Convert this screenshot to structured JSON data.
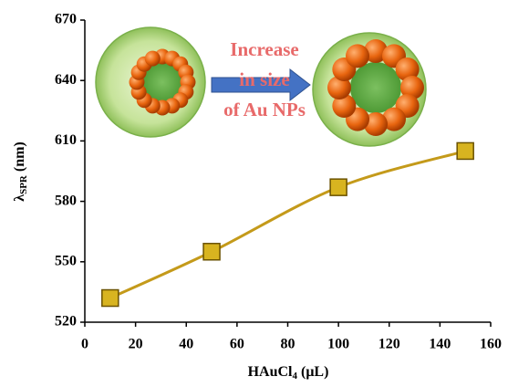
{
  "chart_data": {
    "type": "line",
    "x": [
      10,
      50,
      100,
      150
    ],
    "series": [
      {
        "name": null,
        "color": "#c49a1a",
        "marker_color": "#d8b420",
        "values": [
          532,
          555,
          587,
          605
        ]
      }
    ],
    "xlim": [
      0,
      160
    ],
    "xticks": [
      0,
      20,
      40,
      60,
      80,
      100,
      120,
      140,
      160
    ],
    "ylim": [
      520,
      670
    ],
    "yticks": [
      520,
      550,
      580,
      610,
      640,
      670
    ],
    "x_label": {
      "base": "HAuCl",
      "subscript": "4",
      "unit": "(μL)"
    },
    "y_label": {
      "symbol": "λ",
      "subscript": "SPR",
      "unit": "(nm)"
    },
    "annotation": [
      "Increase",
      "in size",
      "of Au NPs"
    ],
    "grid": false
  }
}
